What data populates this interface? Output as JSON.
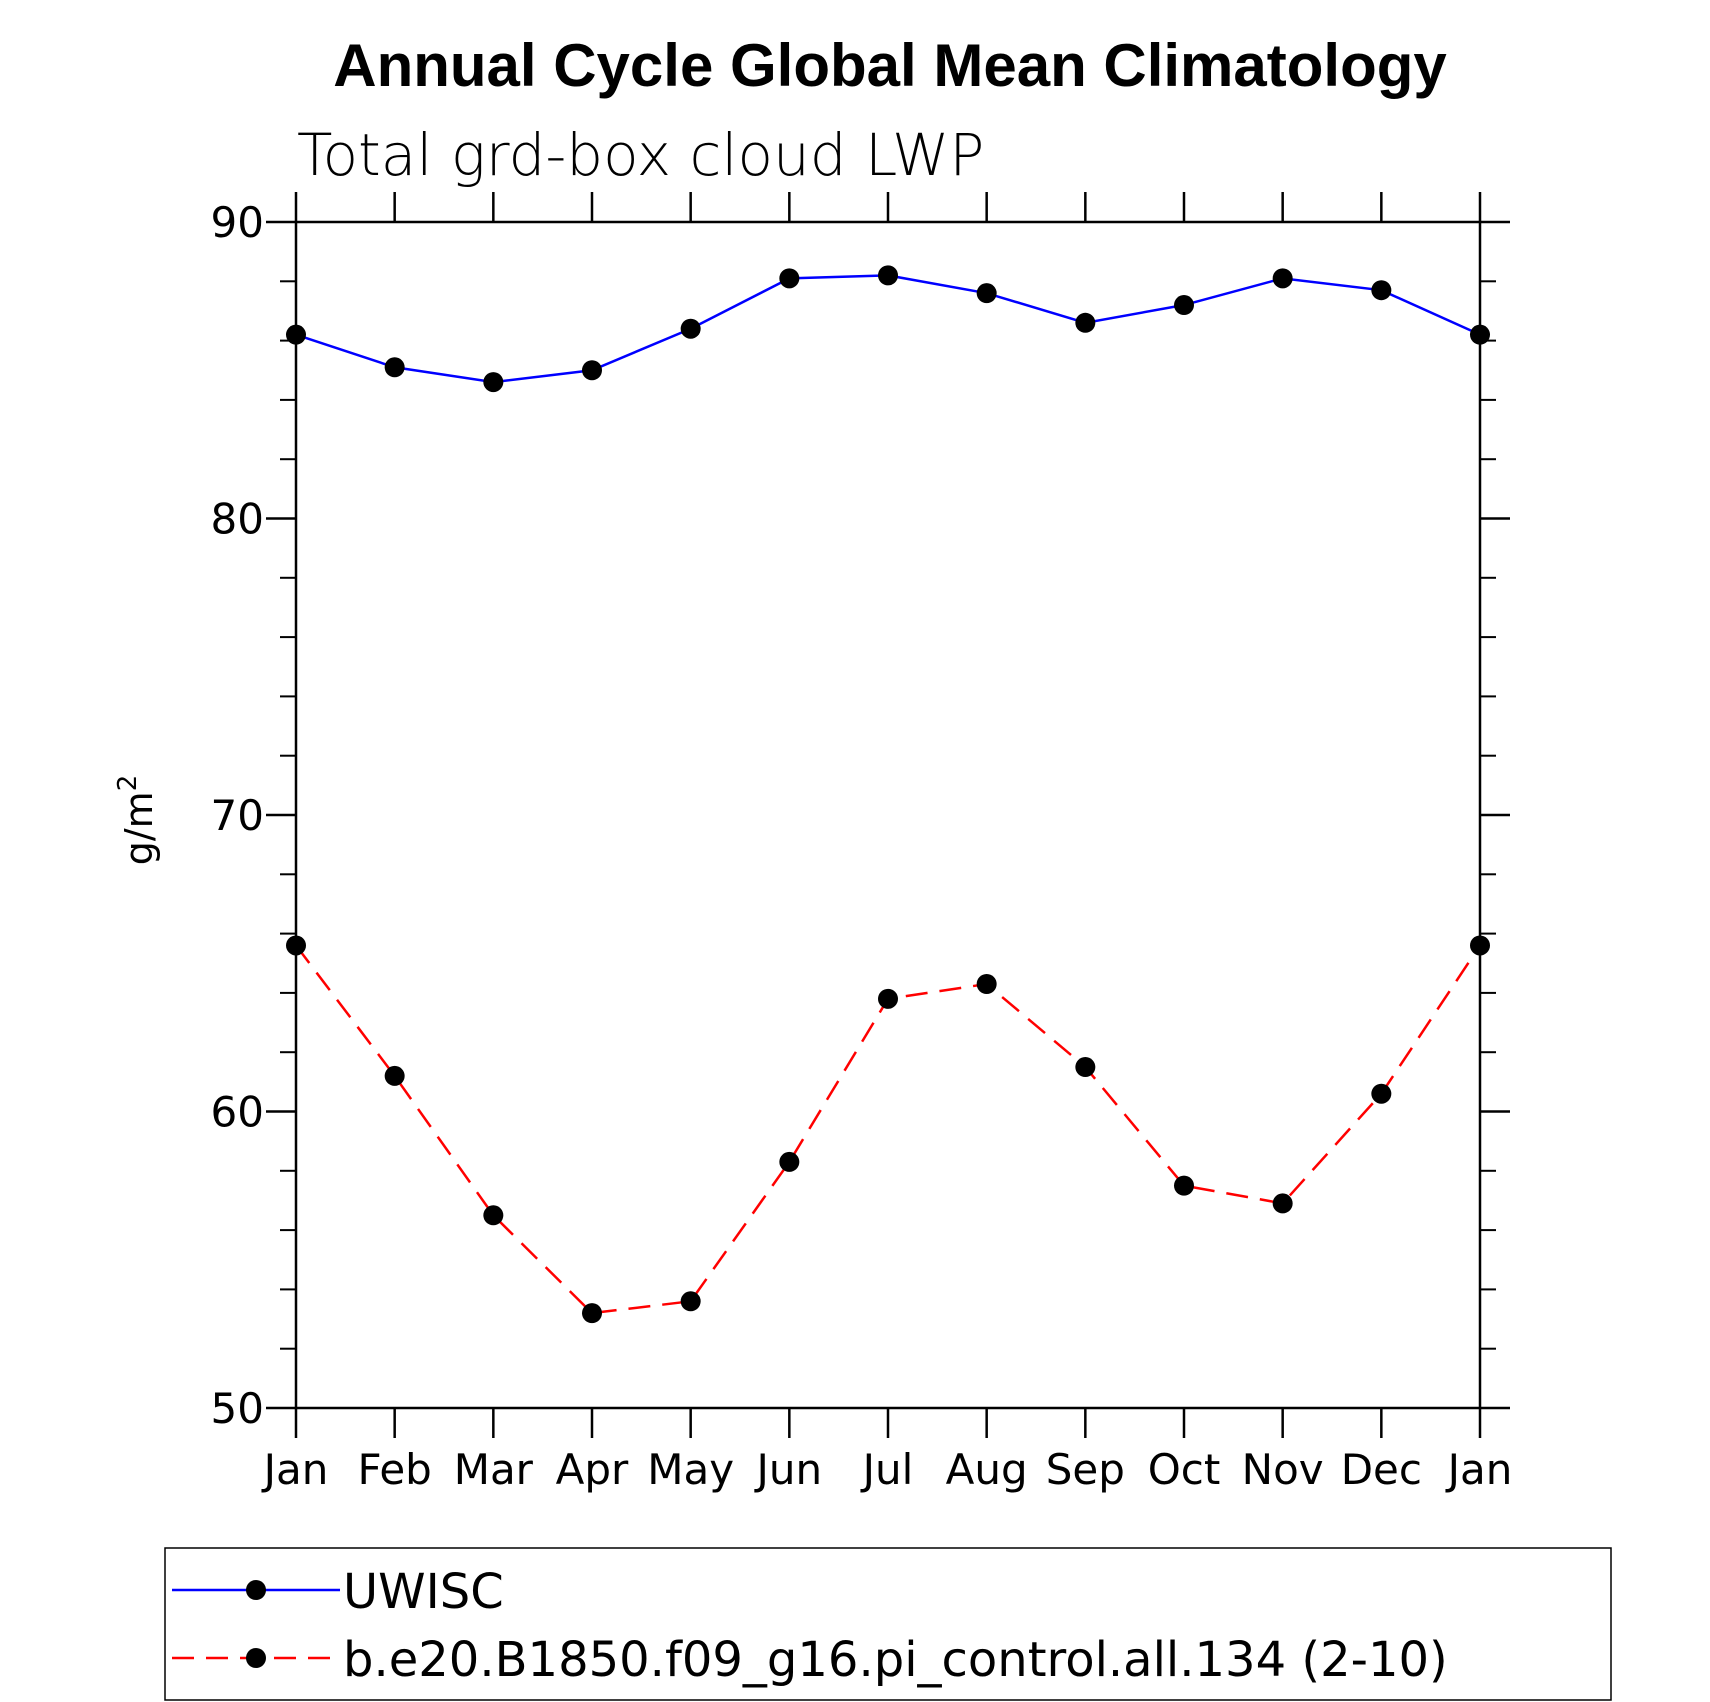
{
  "chart_data": {
    "type": "line",
    "title": "Annual Cycle Global Mean Climatology",
    "subtitle": "Total grd-box cloud LWP",
    "xlabel": "",
    "ylabel": "g/m",
    "ylabel_superscript": "2",
    "categories": [
      "Jan",
      "Feb",
      "Mar",
      "Apr",
      "May",
      "Jun",
      "Jul",
      "Aug",
      "Sep",
      "Oct",
      "Nov",
      "Dec",
      "Jan"
    ],
    "ylim": [
      50,
      90
    ],
    "yticks": [
      50,
      60,
      70,
      80,
      90
    ],
    "y_minor_step": 2,
    "grid": false,
    "legend_position": "bottom",
    "series": [
      {
        "name": "UWISC",
        "color": "#0000ff",
        "dash": "solid",
        "marker_color": "#000000",
        "values": [
          86.2,
          85.1,
          84.6,
          85.0,
          86.4,
          88.1,
          88.2,
          87.6,
          86.6,
          87.2,
          88.1,
          87.7,
          86.2
        ]
      },
      {
        "name": "b.e20.B1850.f09_g16.pi_control.all.134 (2-10)",
        "color": "#ff0000",
        "dash": "dashed",
        "marker_color": "#000000",
        "values": [
          65.6,
          61.2,
          56.5,
          53.2,
          53.6,
          58.3,
          63.8,
          64.3,
          61.5,
          57.5,
          56.9,
          60.6,
          65.6
        ]
      }
    ]
  }
}
